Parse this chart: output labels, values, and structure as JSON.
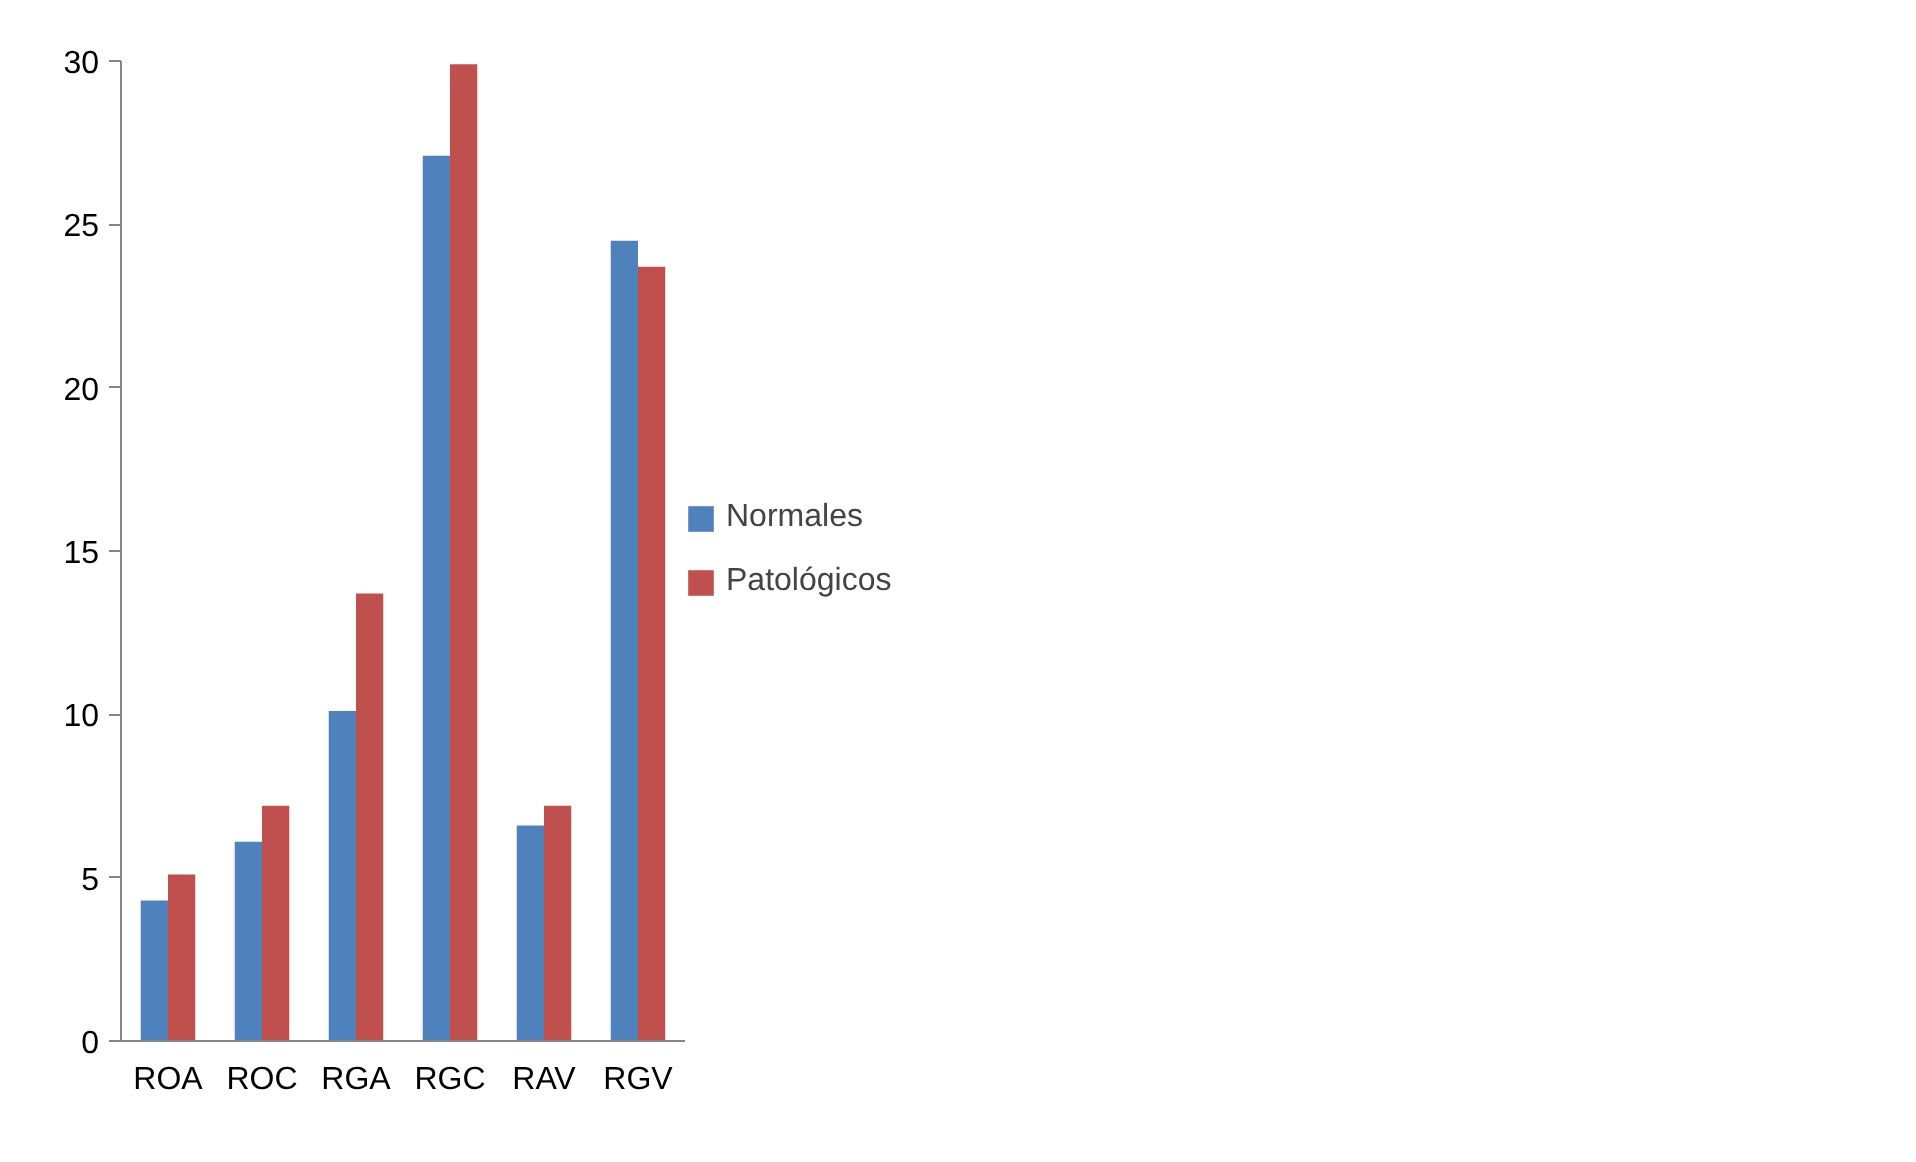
{
  "chart_data": {
    "type": "bar",
    "categories": [
      "ROA",
      "ROC",
      "RGA",
      "RGC",
      "RAV",
      "RGV"
    ],
    "series": [
      {
        "name": "Normales",
        "color": "#4f81bd",
        "values": [
          4.3,
          6.1,
          10.1,
          27.1,
          6.6,
          24.5
        ]
      },
      {
        "name": "Patológicos",
        "color": "#c0504d",
        "values": [
          5.1,
          7.2,
          13.7,
          29.9,
          7.2,
          23.7
        ]
      }
    ],
    "ylim": [
      0,
      30
    ],
    "yticks": [
      0,
      5,
      10,
      15,
      20,
      25,
      30
    ],
    "grid": false,
    "legend": "right"
  }
}
